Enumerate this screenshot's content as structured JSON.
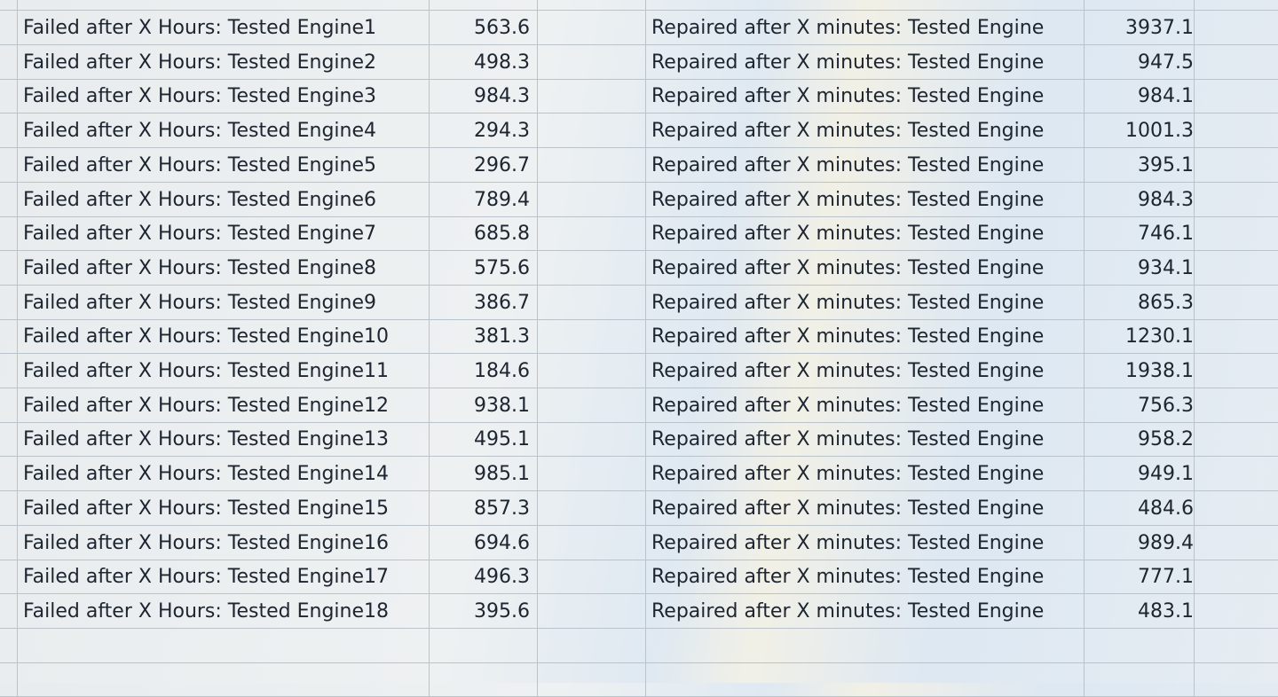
{
  "left_table": {
    "rows": [
      {
        "label": "Failed after X Hours: Tested Engine1",
        "value": "563.6"
      },
      {
        "label": "Failed after X Hours: Tested Engine2",
        "value": "498.3"
      },
      {
        "label": "Failed after X Hours: Tested Engine3",
        "value": "984.3"
      },
      {
        "label": "Failed after X Hours: Tested Engine4",
        "value": "294.3"
      },
      {
        "label": "Failed after X Hours: Tested Engine5",
        "value": "296.7"
      },
      {
        "label": "Failed after X Hours: Tested Engine6",
        "value": "789.4"
      },
      {
        "label": "Failed after X Hours: Tested Engine7",
        "value": "685.8"
      },
      {
        "label": "Failed after X Hours: Tested Engine8",
        "value": "575.6"
      },
      {
        "label": "Failed after X Hours: Tested Engine9",
        "value": "386.7"
      },
      {
        "label": "Failed after X Hours: Tested Engine10",
        "value": "381.3"
      },
      {
        "label": "Failed after X Hours: Tested Engine11",
        "value": "184.6"
      },
      {
        "label": "Failed after X Hours: Tested Engine12",
        "value": "938.1"
      },
      {
        "label": "Failed after X Hours: Tested Engine13",
        "value": "495.1"
      },
      {
        "label": "Failed after X Hours: Tested Engine14",
        "value": "985.1"
      },
      {
        "label": "Failed after X Hours: Tested Engine15",
        "value": "857.3"
      },
      {
        "label": "Failed after X Hours: Tested Engine16",
        "value": "694.6"
      },
      {
        "label": "Failed after X Hours: Tested Engine17",
        "value": "496.3"
      },
      {
        "label": "Failed after X Hours: Tested Engine18",
        "value": "395.6"
      }
    ]
  },
  "right_table": {
    "rows": [
      {
        "label": "Repaired after X minutes: Tested Engine",
        "value": "3937.1"
      },
      {
        "label": "Repaired after X minutes: Tested Engine",
        "value": "947.5"
      },
      {
        "label": "Repaired after X minutes: Tested Engine",
        "value": "984.1"
      },
      {
        "label": "Repaired after X minutes: Tested Engine",
        "value": "1001.3"
      },
      {
        "label": "Repaired after X minutes: Tested Engine",
        "value": "395.1"
      },
      {
        "label": "Repaired after X minutes: Tested Engine",
        "value": "984.3"
      },
      {
        "label": "Repaired after X minutes: Tested Engine",
        "value": "746.1"
      },
      {
        "label": "Repaired after X minutes: Tested Engine",
        "value": "934.1"
      },
      {
        "label": "Repaired after X minutes: Tested Engine",
        "value": "865.3"
      },
      {
        "label": "Repaired after X minutes: Tested Engine",
        "value": "1230.1"
      },
      {
        "label": "Repaired after X minutes: Tested Engine",
        "value": "1938.1"
      },
      {
        "label": "Repaired after X minutes: Tested Engine",
        "value": "756.3"
      },
      {
        "label": "Repaired after X minutes: Tested Engine",
        "value": "958.2"
      },
      {
        "label": "Repaired after X minutes: Tested Engine",
        "value": "949.1"
      },
      {
        "label": "Repaired after X minutes: Tested Engine",
        "value": "484.6"
      },
      {
        "label": "Repaired after X minutes: Tested Engine",
        "value": "989.4"
      },
      {
        "label": "Repaired after X minutes: Tested Engine",
        "value": "777.1"
      },
      {
        "label": "Repaired after X minutes: Tested Engine",
        "value": "483.1"
      }
    ]
  }
}
